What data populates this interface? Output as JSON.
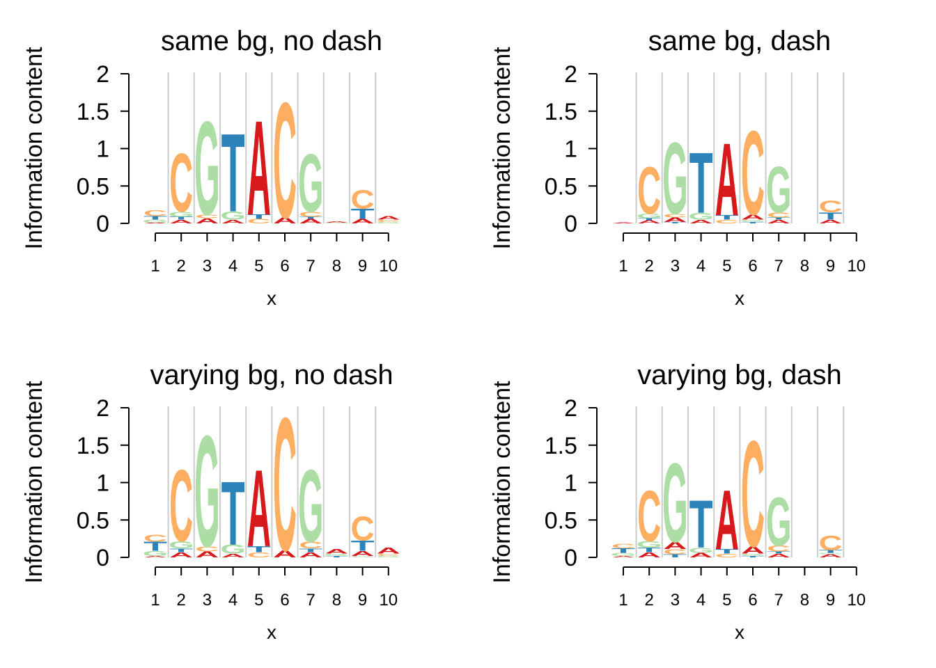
{
  "colors": {
    "A": "#d7191c",
    "C": "#fdae61",
    "G": "#abdda4",
    "T": "#2b83ba",
    "grid": "#cccccc"
  },
  "chart_data": [
    {
      "type": "sequence-logo",
      "title": "same bg, no dash",
      "xlabel": "x",
      "ylabel": "Information content",
      "ylim": [
        0,
        2
      ],
      "yticks": [
        "0",
        "0.5",
        "1",
        "1.5",
        "2"
      ],
      "xticks": [
        "1",
        "2",
        "3",
        "4",
        "5",
        "6",
        "7",
        "8",
        "9",
        "10"
      ],
      "grid": true,
      "positions": [
        [
          [
            "A",
            0.01
          ],
          [
            "G",
            0.04
          ],
          [
            "T",
            0.05
          ],
          [
            "C",
            0.08
          ]
        ],
        [
          [
            "A",
            0.05
          ],
          [
            "T",
            0.04
          ],
          [
            "G",
            0.07
          ],
          [
            "C",
            0.8
          ]
        ],
        [
          [
            "A",
            0.07
          ],
          [
            "C",
            0.05
          ],
          [
            "G",
            1.28
          ]
        ],
        [
          [
            "A",
            0.05
          ],
          [
            "G",
            0.11
          ],
          [
            "T",
            1.07
          ]
        ],
        [
          [
            "C",
            0.06
          ],
          [
            "T",
            0.06
          ],
          [
            "A",
            1.29
          ]
        ],
        [
          [
            "A",
            0.08
          ],
          [
            "C",
            1.58
          ]
        ],
        [
          [
            "A",
            0.06
          ],
          [
            "T",
            0.03
          ],
          [
            "C",
            0.07
          ],
          [
            "G",
            0.79
          ]
        ],
        [
          [
            "G",
            0.01
          ],
          [
            "A",
            0.02
          ]
        ],
        [
          [
            "A",
            0.06
          ],
          [
            "T",
            0.14
          ],
          [
            "C",
            0.25
          ]
        ],
        [
          [
            "G",
            0.02
          ],
          [
            "C",
            0.03
          ],
          [
            "A",
            0.05
          ]
        ]
      ]
    },
    {
      "type": "sequence-logo",
      "title": "same bg, dash",
      "xlabel": "x",
      "ylabel": "Information content",
      "ylim": [
        0,
        2
      ],
      "yticks": [
        "0",
        "0.5",
        "1",
        "1.5",
        "2"
      ],
      "xticks": [
        "1",
        "2",
        "3",
        "4",
        "5",
        "6",
        "7",
        "8",
        "9",
        "10"
      ],
      "grid": true,
      "positions": [
        [
          [
            "A",
            0.01
          ]
        ],
        [
          [
            "A",
            0.04
          ],
          [
            "T",
            0.03
          ],
          [
            "G",
            0.06
          ],
          [
            "C",
            0.64
          ]
        ],
        [
          [
            "T",
            0.02
          ],
          [
            "A",
            0.06
          ],
          [
            "C",
            0.05
          ],
          [
            "G",
            0.98
          ]
        ],
        [
          [
            "A",
            0.05
          ],
          [
            "G",
            0.09
          ],
          [
            "T",
            0.83
          ]
        ],
        [
          [
            "C",
            0.05
          ],
          [
            "T",
            0.06
          ],
          [
            "A",
            0.99
          ]
        ],
        [
          [
            "T",
            0.02
          ],
          [
            "G",
            0.03
          ],
          [
            "A",
            0.07
          ],
          [
            "C",
            1.15
          ]
        ],
        [
          [
            "A",
            0.05
          ],
          [
            "T",
            0.03
          ],
          [
            "C",
            0.07
          ],
          [
            "G",
            0.63
          ]
        ],
        [],
        [
          [
            "A",
            0.05
          ],
          [
            "T",
            0.1
          ],
          [
            "C",
            0.16
          ]
        ],
        []
      ]
    },
    {
      "type": "sequence-logo",
      "title": "varying bg, no dash",
      "xlabel": "x",
      "ylabel": "Information content",
      "ylim": [
        0,
        2
      ],
      "yticks": [
        "0",
        "0.5",
        "1",
        "1.5",
        "2"
      ],
      "xticks": [
        "1",
        "2",
        "3",
        "4",
        "5",
        "6",
        "7",
        "8",
        "9",
        "10"
      ],
      "grid": true,
      "positions": [
        [
          [
            "A",
            0.02
          ],
          [
            "G",
            0.07
          ],
          [
            "T",
            0.12
          ],
          [
            "C",
            0.1
          ]
        ],
        [
          [
            "A",
            0.07
          ],
          [
            "T",
            0.05
          ],
          [
            "G",
            0.1
          ],
          [
            "C",
            0.98
          ]
        ],
        [
          [
            "A",
            0.08
          ],
          [
            "C",
            0.07
          ],
          [
            "G",
            1.52
          ]
        ],
        [
          [
            "A",
            0.05
          ],
          [
            "G",
            0.12
          ],
          [
            "T",
            0.87
          ]
        ],
        [
          [
            "C",
            0.07
          ],
          [
            "T",
            0.08
          ],
          [
            "A",
            1.05
          ]
        ],
        [
          [
            "A",
            0.1
          ],
          [
            "C",
            1.82
          ]
        ],
        [
          [
            "A",
            0.07
          ],
          [
            "T",
            0.05
          ],
          [
            "C",
            0.09
          ],
          [
            "G",
            0.99
          ]
        ],
        [
          [
            "T",
            0.02
          ],
          [
            "G",
            0.03
          ],
          [
            "A",
            0.06
          ]
        ],
        [
          [
            "G",
            0.02
          ],
          [
            "A",
            0.07
          ],
          [
            "T",
            0.14
          ],
          [
            "C",
            0.33
          ]
        ],
        [
          [
            "G",
            0.02
          ],
          [
            "C",
            0.03
          ],
          [
            "A",
            0.08
          ]
        ]
      ]
    },
    {
      "type": "sequence-logo",
      "title": "varying bg, dash",
      "xlabel": "x",
      "ylabel": "Information content",
      "ylim": [
        0,
        2
      ],
      "yticks": [
        "0",
        "0.5",
        "1",
        "1.5",
        "2"
      ],
      "xticks": [
        "1",
        "2",
        "3",
        "4",
        "5",
        "6",
        "7",
        "8",
        "9",
        "10"
      ],
      "grid": true,
      "positions": [
        [
          [
            "A",
            0.02
          ],
          [
            "G",
            0.04
          ],
          [
            "T",
            0.06
          ],
          [
            "C",
            0.06
          ]
        ],
        [
          [
            "A",
            0.07
          ],
          [
            "T",
            0.06
          ],
          [
            "G",
            0.09
          ],
          [
            "C",
            0.69
          ]
        ],
        [
          [
            "T",
            0.04
          ],
          [
            "C",
            0.07
          ],
          [
            "A",
            0.1
          ],
          [
            "G",
            1.08
          ]
        ],
        [
          [
            "A",
            0.06
          ],
          [
            "G",
            0.07
          ],
          [
            "T",
            0.65
          ]
        ],
        [
          [
            "C",
            0.05
          ],
          [
            "T",
            0.06
          ],
          [
            "A",
            0.81
          ]
        ],
        [
          [
            "T",
            0.02
          ],
          [
            "G",
            0.03
          ],
          [
            "A",
            0.1
          ],
          [
            "C",
            1.45
          ]
        ],
        [
          [
            "A",
            0.05
          ],
          [
            "T",
            0.03
          ],
          [
            "C",
            0.08
          ],
          [
            "G",
            0.66
          ]
        ],
        [],
        [
          [
            "A",
            0.04
          ],
          [
            "G",
            0.02
          ],
          [
            "T",
            0.04
          ],
          [
            "C",
            0.2
          ]
        ],
        []
      ]
    }
  ]
}
